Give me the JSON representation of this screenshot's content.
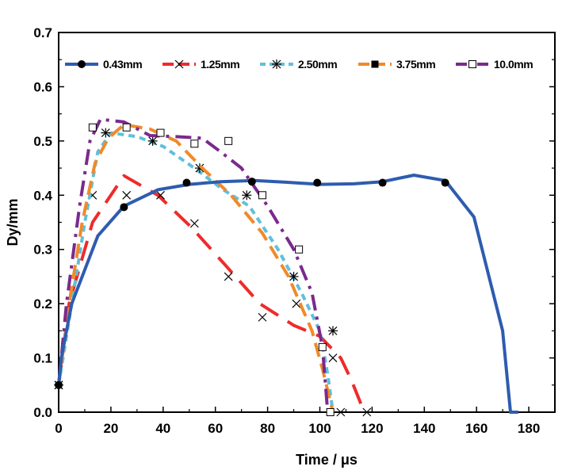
{
  "chart_data": {
    "type": "line",
    "xlabel": "Time / μs",
    "ylabel": "Dy/mm",
    "xlim": [
      0,
      190
    ],
    "ylim": [
      0,
      0.7
    ],
    "xticks": [
      0,
      20,
      40,
      60,
      80,
      100,
      120,
      140,
      160,
      180
    ],
    "xtick_labels": [
      "0",
      "20",
      "40",
      "60",
      "80",
      "100",
      "120",
      "140",
      "160",
      "180"
    ],
    "yticks": [
      0.0,
      0.1,
      0.2,
      0.3,
      0.4,
      0.5,
      0.6,
      0.7
    ],
    "ytick_labels": [
      "0.0",
      "0.1",
      "0.2",
      "0.3",
      "0.4",
      "0.5",
      "0.6",
      "0.7"
    ],
    "grid": false,
    "legend_position": "top",
    "series": [
      {
        "name": "0.43mm",
        "color": "#2e5cae",
        "dash": "solid",
        "marker": "filled-circle",
        "line": [
          [
            0,
            0.05
          ],
          [
            1,
            0.1
          ],
          [
            5,
            0.2
          ],
          [
            15,
            0.325
          ],
          [
            25,
            0.38
          ],
          [
            38,
            0.41
          ],
          [
            50,
            0.42
          ],
          [
            62,
            0.425
          ],
          [
            75,
            0.427
          ],
          [
            87,
            0.424
          ],
          [
            100,
            0.42
          ],
          [
            113,
            0.421
          ],
          [
            124,
            0.425
          ],
          [
            136,
            0.437
          ],
          [
            148,
            0.427
          ],
          [
            159,
            0.36
          ],
          [
            170,
            0.15
          ],
          [
            173,
            0.0
          ],
          [
            176,
            0.0
          ]
        ],
        "markers": [
          [
            0,
            0.05
          ],
          [
            25,
            0.378
          ],
          [
            49,
            0.423
          ],
          [
            74,
            0.425
          ],
          [
            99,
            0.423
          ],
          [
            124,
            0.423
          ],
          [
            148,
            0.423
          ]
        ]
      },
      {
        "name": "1.25mm",
        "color": "#ee2b2b",
        "dash": "long-dash",
        "marker": "x",
        "line": [
          [
            0,
            0.05
          ],
          [
            4,
            0.2
          ],
          [
            13,
            0.35
          ],
          [
            25,
            0.436
          ],
          [
            38,
            0.4
          ],
          [
            51,
            0.34
          ],
          [
            64,
            0.27
          ],
          [
            77,
            0.2
          ],
          [
            90,
            0.16
          ],
          [
            100,
            0.14
          ],
          [
            108,
            0.1
          ],
          [
            112,
            0.06
          ],
          [
            117,
            0.0
          ]
        ],
        "markers": [
          [
            0,
            0.05
          ],
          [
            13,
            0.4
          ],
          [
            26,
            0.4
          ],
          [
            39,
            0.4
          ],
          [
            52,
            0.348
          ],
          [
            65,
            0.25
          ],
          [
            78,
            0.175
          ],
          [
            91,
            0.2
          ],
          [
            105,
            0.1
          ],
          [
            108,
            0.0
          ],
          [
            118,
            0.0
          ]
        ]
      },
      {
        "name": "2.50mm",
        "color": "#5fc0dc",
        "dash": "short-dash",
        "marker": "asterisk",
        "line": [
          [
            0,
            0.05
          ],
          [
            5,
            0.2
          ],
          [
            10,
            0.35
          ],
          [
            15,
            0.48
          ],
          [
            20,
            0.515
          ],
          [
            30,
            0.508
          ],
          [
            40,
            0.49
          ],
          [
            52,
            0.45
          ],
          [
            63,
            0.41
          ],
          [
            73,
            0.38
          ],
          [
            84,
            0.3
          ],
          [
            93,
            0.22
          ],
          [
            100,
            0.15
          ],
          [
            103,
            0.07
          ],
          [
            105,
            0.0
          ]
        ],
        "markers": [
          [
            0,
            0.05
          ],
          [
            18,
            0.515
          ],
          [
            36,
            0.5
          ],
          [
            54,
            0.45
          ],
          [
            72,
            0.4
          ],
          [
            90,
            0.25
          ],
          [
            105,
            0.15
          ]
        ]
      },
      {
        "name": "3.75mm",
        "color": "#f08a29",
        "dash": "dash",
        "marker": "filled-square",
        "line": [
          [
            0,
            0.05
          ],
          [
            4,
            0.2
          ],
          [
            9,
            0.35
          ],
          [
            14,
            0.46
          ],
          [
            19,
            0.505
          ],
          [
            25,
            0.53
          ],
          [
            35,
            0.522
          ],
          [
            45,
            0.5
          ],
          [
            55,
            0.45
          ],
          [
            66,
            0.4
          ],
          [
            78,
            0.33
          ],
          [
            88,
            0.25
          ],
          [
            97,
            0.15
          ],
          [
            101,
            0.08
          ],
          [
            104,
            0.02
          ],
          [
            105,
            0.0
          ]
        ],
        "markers": []
      },
      {
        "name": "10.0mm",
        "color": "#7a2a8c",
        "dash": "dash-dot",
        "marker": "open-square",
        "line": [
          [
            0,
            0.05
          ],
          [
            3,
            0.2
          ],
          [
            8,
            0.38
          ],
          [
            12,
            0.5
          ],
          [
            16,
            0.54
          ],
          [
            25,
            0.535
          ],
          [
            35,
            0.51
          ],
          [
            45,
            0.508
          ],
          [
            55,
            0.505
          ],
          [
            62,
            0.48
          ],
          [
            70,
            0.45
          ],
          [
            80,
            0.38
          ],
          [
            90,
            0.3
          ],
          [
            97,
            0.22
          ],
          [
            101,
            0.12
          ],
          [
            103,
            0.0
          ]
        ],
        "markers": [
          [
            13,
            0.525
          ],
          [
            26,
            0.525
          ],
          [
            39,
            0.515
          ],
          [
            52,
            0.495
          ],
          [
            65,
            0.5
          ],
          [
            78,
            0.4
          ],
          [
            92,
            0.3
          ],
          [
            101,
            0.12
          ],
          [
            104,
            0.0
          ]
        ]
      }
    ]
  }
}
